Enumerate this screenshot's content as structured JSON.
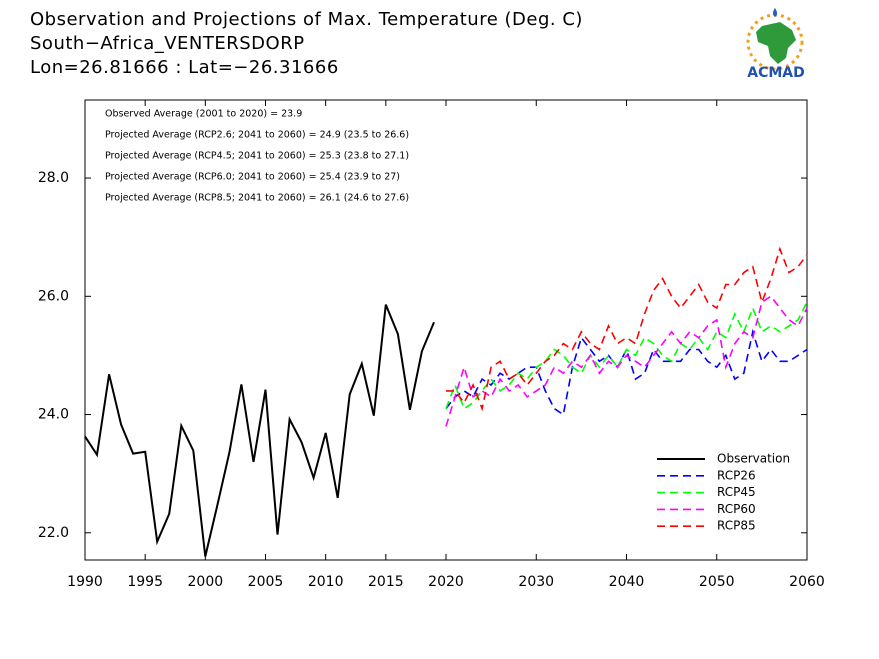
{
  "chart_data": {
    "type": "line",
    "title": [
      "Observation and Projections of Max. Temperature (Deg. C)",
      "South−Africa_VENTERSDORP",
      "Lon=26.81666 : Lat=−26.31666"
    ],
    "logo": "ACMAD",
    "annotations": [
      "Observed Average (2001 to 2020) = 23.9",
      "Projected Average (RCP2.6; 2041 to 2060) = 24.9 (23.5 to 26.6)",
      "Projected Average (RCP4.5; 2041 to 2060) = 25.3 (23.8 to 27.1)",
      "Projected Average (RCP6.0; 2041 to 2060) = 25.4 (23.9 to 27)",
      "Projected Average (RCP8.5; 2041 to 2060) = 26.1 (24.6 to 27.6)"
    ],
    "xlim": [
      1990,
      2060
    ],
    "xticks": [
      1990,
      1995,
      2000,
      2005,
      2010,
      2015,
      2020,
      2030,
      2040,
      2050,
      2060
    ],
    "ylim": [
      21.54,
      29.32
    ],
    "yticks": [
      {
        "value": 22,
        "label": "22.0"
      },
      {
        "value": 24,
        "label": "24.0"
      },
      {
        "value": 26,
        "label": "26.0"
      },
      {
        "value": 28,
        "label": "28.0"
      }
    ],
    "legend": "lower right",
    "series": [
      {
        "name": "Observation",
        "color": "#000000",
        "dashed": false,
        "x": [
          1990,
          1991,
          1992,
          1993,
          1994,
          1995,
          1996,
          1997,
          1998,
          1999,
          2000,
          2001,
          2002,
          2003,
          2004,
          2005,
          2006,
          2007,
          2008,
          2009,
          2010,
          2011,
          2012,
          2013,
          2014,
          2015,
          2016,
          2017,
          2018,
          2019
        ],
        "values": [
          23.63,
          23.32,
          24.68,
          23.83,
          23.34,
          23.37,
          21.85,
          22.32,
          23.81,
          23.39,
          21.6,
          22.47,
          23.36,
          24.51,
          23.2,
          24.42,
          21.97,
          23.92,
          23.53,
          22.93,
          23.69,
          22.59,
          24.34,
          24.86,
          23.98,
          25.86,
          25.36,
          24.08,
          25.07,
          25.56
        ]
      },
      {
        "name": "RCP26",
        "color": "#0000ff",
        "dashed": true,
        "x": [
          2020,
          2021,
          2022,
          2023,
          2024,
          2025,
          2026,
          2027,
          2028,
          2029,
          2030,
          2031,
          2032,
          2033,
          2034,
          2035,
          2036,
          2037,
          2038,
          2039,
          2040,
          2041,
          2042,
          2043,
          2044,
          2045,
          2046,
          2047,
          2048,
          2049,
          2050,
          2051,
          2052,
          2053,
          2054,
          2055,
          2056,
          2057,
          2058,
          2059,
          2060
        ],
        "values": [
          24.1,
          24.3,
          24.4,
          24.3,
          24.6,
          24.5,
          24.7,
          24.6,
          24.7,
          24.8,
          24.8,
          24.4,
          24.1,
          24.0,
          24.8,
          25.3,
          25.1,
          24.9,
          25.0,
          24.8,
          25.1,
          24.6,
          24.7,
          25.1,
          24.9,
          24.9,
          24.9,
          25.1,
          25.1,
          24.9,
          24.8,
          25.0,
          24.6,
          24.7,
          25.4,
          24.9,
          25.1,
          24.9,
          24.9,
          25.0,
          25.1
        ]
      },
      {
        "name": "RCP45",
        "color": "#00ff00",
        "dashed": true,
        "x": [
          2020,
          2021,
          2022,
          2023,
          2024,
          2025,
          2026,
          2027,
          2028,
          2029,
          2030,
          2031,
          2032,
          2033,
          2034,
          2035,
          2036,
          2037,
          2038,
          2039,
          2040,
          2041,
          2042,
          2043,
          2044,
          2045,
          2046,
          2047,
          2048,
          2049,
          2050,
          2051,
          2052,
          2053,
          2054,
          2055,
          2056,
          2057,
          2058,
          2059,
          2060
        ],
        "values": [
          24.1,
          24.5,
          24.1,
          24.2,
          24.4,
          24.6,
          24.4,
          24.5,
          24.7,
          24.6,
          24.8,
          24.9,
          25.1,
          25.0,
          24.8,
          24.7,
          25.0,
          24.8,
          25.0,
          24.8,
          25.1,
          25.0,
          25.3,
          25.2,
          25.0,
          24.9,
          25.2,
          25.1,
          25.3,
          25.1,
          25.4,
          25.3,
          25.7,
          25.4,
          25.8,
          25.4,
          25.5,
          25.4,
          25.5,
          25.6,
          25.9
        ]
      },
      {
        "name": "RCP60",
        "color": "#ff00ff",
        "dashed": true,
        "x": [
          2020,
          2021,
          2022,
          2023,
          2024,
          2025,
          2026,
          2027,
          2028,
          2029,
          2030,
          2031,
          2032,
          2033,
          2034,
          2035,
          2036,
          2037,
          2038,
          2039,
          2040,
          2041,
          2042,
          2043,
          2044,
          2045,
          2046,
          2047,
          2048,
          2049,
          2050,
          2051,
          2052,
          2053,
          2054,
          2055,
          2056,
          2057,
          2058,
          2059,
          2060
        ],
        "values": [
          23.8,
          24.3,
          24.8,
          24.3,
          24.4,
          24.3,
          24.6,
          24.4,
          24.5,
          24.3,
          24.4,
          24.5,
          24.8,
          24.7,
          24.9,
          24.8,
          25.0,
          24.7,
          24.9,
          24.8,
          25.0,
          24.9,
          24.8,
          25.0,
          25.2,
          25.4,
          25.2,
          25.4,
          25.3,
          25.5,
          25.6,
          24.8,
          25.2,
          25.4,
          25.3,
          25.9,
          26.0,
          25.8,
          25.6,
          25.5,
          25.8
        ]
      },
      {
        "name": "RCP85",
        "color": "#ff0000",
        "dashed": true,
        "x": [
          2020,
          2021,
          2022,
          2023,
          2024,
          2025,
          2026,
          2027,
          2028,
          2029,
          2030,
          2031,
          2032,
          2033,
          2034,
          2035,
          2036,
          2037,
          2038,
          2039,
          2040,
          2041,
          2042,
          2043,
          2044,
          2045,
          2046,
          2047,
          2048,
          2049,
          2050,
          2051,
          2052,
          2053,
          2054,
          2055,
          2056,
          2057,
          2058,
          2059,
          2060
        ],
        "values": [
          24.4,
          24.4,
          24.2,
          24.5,
          24.1,
          24.8,
          24.9,
          24.6,
          24.7,
          24.5,
          24.7,
          24.9,
          25.0,
          25.2,
          25.1,
          25.4,
          25.2,
          25.1,
          25.5,
          25.2,
          25.3,
          25.2,
          25.7,
          26.1,
          26.3,
          26.0,
          25.8,
          26.0,
          26.2,
          25.9,
          25.8,
          26.2,
          26.2,
          26.4,
          26.5,
          25.9,
          26.3,
          26.8,
          26.4,
          26.5,
          26.7
        ]
      }
    ]
  }
}
